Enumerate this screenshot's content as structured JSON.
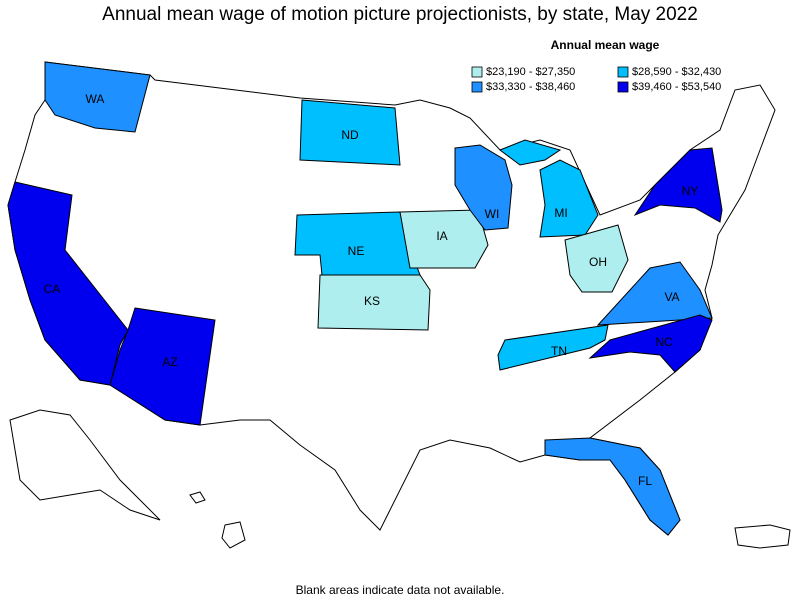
{
  "title": "Annual mean wage of motion picture projectionists, by state, May 2022",
  "legend": {
    "title": "Annual mean wage",
    "items": [
      {
        "label": "$23,190 - $27,350",
        "color": "#afeeee"
      },
      {
        "label": "$28,590 - $32,430",
        "color": "#00bfff"
      },
      {
        "label": "$33,330 - $38,460",
        "color": "#1e90ff"
      },
      {
        "label": "$39,460 - $53,540",
        "color": "#0000ee"
      }
    ]
  },
  "states": [
    {
      "label": "WA",
      "color": "#1e90ff"
    },
    {
      "label": "CA",
      "color": "#0000ee"
    },
    {
      "label": "AZ",
      "color": "#0000ee"
    },
    {
      "label": "ND",
      "color": "#00bfff"
    },
    {
      "label": "NE",
      "color": "#00bfff"
    },
    {
      "label": "KS",
      "color": "#afeeee"
    },
    {
      "label": "IA",
      "color": "#afeeee"
    },
    {
      "label": "WI",
      "color": "#1e90ff"
    },
    {
      "label": "MI",
      "color": "#00bfff"
    },
    {
      "label": "OH",
      "color": "#afeeee"
    },
    {
      "label": "TN",
      "color": "#00bfff"
    },
    {
      "label": "VA",
      "color": "#1e90ff"
    },
    {
      "label": "NC",
      "color": "#0000ee"
    },
    {
      "label": "NY",
      "color": "#0000ee"
    },
    {
      "label": "FL",
      "color": "#1e90ff"
    }
  ],
  "footnote": "Blank areas indicate data not available."
}
